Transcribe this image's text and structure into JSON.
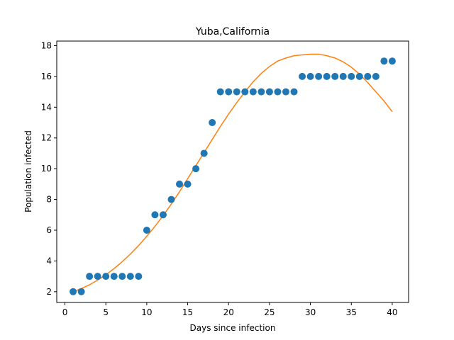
{
  "chart_data": {
    "type": "scatter",
    "title": "Yuba,California",
    "xlabel": "Days since infection",
    "ylabel": "Population infected",
    "xlim": [
      -1,
      42
    ],
    "ylim": [
      1.3,
      18.3
    ],
    "xticks": [
      0,
      5,
      10,
      15,
      20,
      25,
      30,
      35,
      40
    ],
    "yticks": [
      2,
      4,
      6,
      8,
      10,
      12,
      14,
      16,
      18
    ],
    "grid": false,
    "colors": {
      "points": "#1f77b4",
      "fit": "#ff7f0e"
    },
    "series": [
      {
        "type": "scatter",
        "x": [
          1,
          2,
          3,
          4,
          5,
          6,
          7,
          8,
          9,
          10,
          11,
          12,
          13,
          14,
          15,
          16,
          17,
          18,
          19,
          20,
          21,
          22,
          23,
          24,
          25,
          26,
          27,
          28,
          29,
          30,
          31,
          32,
          33,
          34,
          35,
          36,
          37,
          38,
          39,
          40
        ],
        "y": [
          2,
          2,
          3,
          3,
          3,
          3,
          3,
          3,
          3,
          6,
          7,
          7,
          8,
          9,
          9,
          10,
          11,
          13,
          15,
          15,
          15,
          15,
          15,
          15,
          15,
          15,
          15,
          15,
          16,
          16,
          16,
          16,
          16,
          16,
          16,
          16,
          16,
          16,
          17,
          17
        ]
      },
      {
        "type": "line",
        "x": [
          1,
          2,
          3,
          4,
          5,
          6,
          7,
          8,
          9,
          10,
          11,
          12,
          13,
          14,
          15,
          16,
          17,
          18,
          19,
          20,
          21,
          22,
          23,
          24,
          25,
          26,
          27,
          28,
          29,
          30,
          31,
          32,
          33,
          34,
          35,
          36,
          37,
          38,
          39,
          40
        ],
        "y": [
          2.0,
          2.2,
          2.45,
          2.75,
          3.1,
          3.5,
          3.95,
          4.45,
          5.0,
          5.6,
          6.25,
          6.95,
          7.7,
          8.5,
          9.35,
          10.2,
          11.05,
          11.9,
          12.75,
          13.55,
          14.3,
          15.0,
          15.65,
          16.2,
          16.65,
          17.0,
          17.2,
          17.35,
          17.4,
          17.45,
          17.45,
          17.35,
          17.2,
          16.95,
          16.6,
          16.15,
          15.6,
          15.0,
          14.4,
          13.7
        ]
      }
    ]
  }
}
